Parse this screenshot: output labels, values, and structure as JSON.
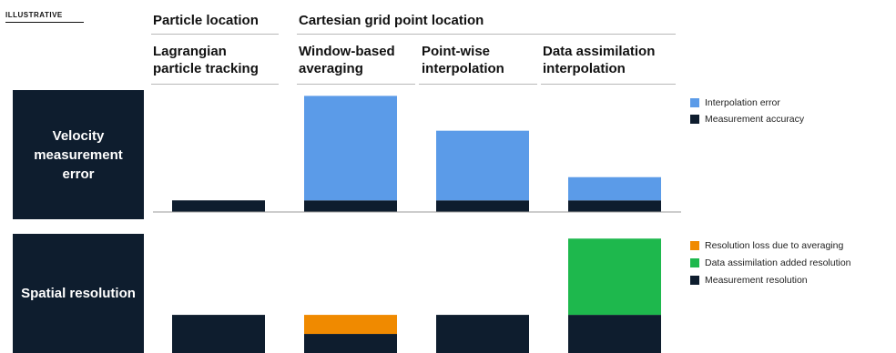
{
  "tag": "ILLUSTRATIVE",
  "header": {
    "group1": "Particle location",
    "group2": "Cartesian grid point location",
    "cols": [
      "Lagrangian\nparticle tracking",
      "Window-based\naveraging",
      "Point-wise\ninterpolation",
      "Data assimilation\ninterpolation"
    ]
  },
  "rows": {
    "velocity": "Velocity measurement error",
    "resolution": "Spatial resolution"
  },
  "legend_velocity": [
    {
      "label": "Interpolation error",
      "color": "#5b9be8"
    },
    {
      "label": "Measurement accuracy",
      "color": "#0e1d2e"
    }
  ],
  "legend_resolution": [
    {
      "label": "Resolution loss due to averaging",
      "color": "#f08a00"
    },
    {
      "label": "Data assimilation added resolution",
      "color": "#1eb84d"
    },
    {
      "label": "Measurement resolution",
      "color": "#0e1d2e"
    }
  ],
  "chart_data": [
    {
      "type": "bar",
      "stacked": true,
      "row": "Velocity measurement error",
      "categories": [
        "Lagrangian particle tracking",
        "Window-based averaging",
        "Point-wise interpolation",
        "Data assimilation interpolation"
      ],
      "series": [
        {
          "name": "Measurement accuracy",
          "values": [
            1,
            1,
            1,
            1
          ],
          "color": "#0e1d2e"
        },
        {
          "name": "Interpolation error",
          "values": [
            0,
            9,
            6,
            2
          ],
          "color": "#5b9be8"
        }
      ],
      "ylim": [
        0,
        10.5
      ]
    },
    {
      "type": "bar",
      "stacked": true,
      "row": "Spatial resolution",
      "categories": [
        "Lagrangian particle tracking",
        "Window-based averaging",
        "Point-wise interpolation",
        "Data assimilation interpolation"
      ],
      "series": [
        {
          "name": "Measurement resolution",
          "values": [
            4,
            2,
            4,
            4
          ],
          "color": "#0e1d2e"
        },
        {
          "name": "Resolution loss due to averaging",
          "values": [
            0,
            2,
            0,
            0
          ],
          "color": "#f08a00"
        },
        {
          "name": "Data assimilation added resolution",
          "values": [
            0,
            0,
            0,
            8
          ],
          "color": "#1eb84d"
        }
      ],
      "ylim": [
        0,
        12.5
      ]
    }
  ]
}
